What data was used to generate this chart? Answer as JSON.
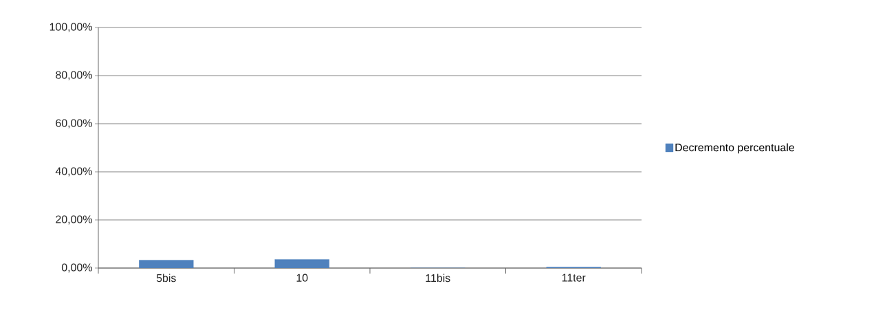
{
  "chart_data": {
    "type": "bar",
    "categories": [
      "5bis",
      "10",
      "11bis",
      "11ter"
    ],
    "series": [
      {
        "name": "Decremento percentuale",
        "color": "#4f81bd",
        "values": [
          3.3,
          3.6,
          0,
          0.4
        ]
      }
    ],
    "ylim": [
      0,
      100
    ],
    "yticks": [
      {
        "value": 0,
        "label": "0,00%"
      },
      {
        "value": 20,
        "label": "20,00%"
      },
      {
        "value": 40,
        "label": "40,00%"
      },
      {
        "value": 60,
        "label": "60,00%"
      },
      {
        "value": 80,
        "label": "80,00%"
      },
      {
        "value": 100,
        "label": "100,00%"
      }
    ],
    "grid": "y",
    "legend": "right"
  }
}
